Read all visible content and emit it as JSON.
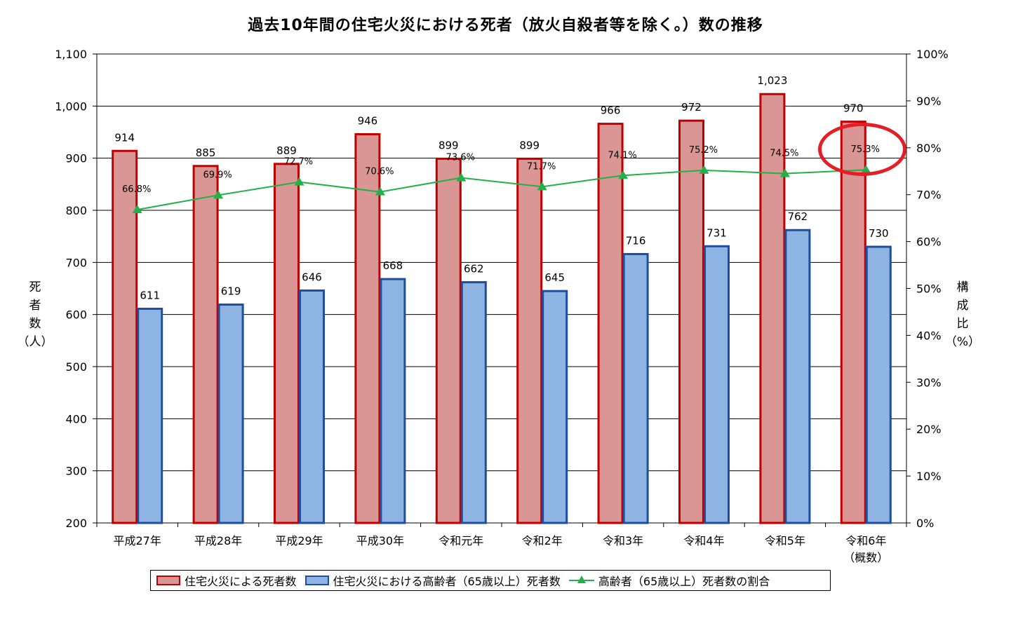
{
  "title": "過去10年間の住宅火災における死者（放火自殺者等を除く。）数の推移",
  "y_left_title": [
    "死",
    "者",
    "数",
    "（人）"
  ],
  "y_right_title": [
    "構",
    "成",
    "比",
    "（%）"
  ],
  "colors": {
    "bar_total_fill": "#d99694",
    "bar_total_border": "#c00000",
    "bar_elderly_fill": "#8eb4e3",
    "bar_elderly_border": "#1f4e9c",
    "line": "#22b04a",
    "annotation": "#e41e26"
  },
  "annotation": "red-ellipse-around-令和6年-ratio",
  "legend": {
    "total": "住宅火災による死者数",
    "elderly": "住宅火災における高齢者（65歳以上）死者数",
    "ratio": "高齢者（65歳以上）死者数の割合"
  },
  "chart_data": {
    "type": "bar",
    "title": "過去10年間の住宅火災における死者（放火自殺者等を除く。）数の推移",
    "categories": [
      "平成27年",
      "平成28年",
      "平成29年",
      "平成30年",
      "令和元年",
      "令和2年",
      "令和3年",
      "令和4年",
      "令和5年",
      "令和6年"
    ],
    "category_sublabels": [
      "",
      "",
      "",
      "",
      "",
      "",
      "",
      "",
      "",
      "（概数）"
    ],
    "series": [
      {
        "name": "住宅火災による死者数",
        "kind": "bar",
        "axis": "left",
        "values": [
          914,
          885,
          889,
          946,
          899,
          899,
          966,
          972,
          1023,
          970
        ],
        "labels": [
          "914",
          "885",
          "889",
          "946",
          "899",
          "899",
          "966",
          "972",
          "1,023",
          "970"
        ]
      },
      {
        "name": "住宅火災における高齢者（65歳以上）死者数",
        "kind": "bar",
        "axis": "left",
        "values": [
          611,
          619,
          646,
          668,
          662,
          645,
          716,
          731,
          762,
          730
        ],
        "labels": [
          "611",
          "619",
          "646",
          "668",
          "662",
          "645",
          "716",
          "731",
          "762",
          "730"
        ]
      },
      {
        "name": "高齢者（65歳以上）死者数の割合",
        "kind": "line",
        "axis": "right",
        "marker": "triangle",
        "values": [
          66.8,
          69.9,
          72.7,
          70.6,
          73.6,
          71.7,
          74.1,
          75.2,
          74.5,
          75.3
        ],
        "labels": [
          "66.8%",
          "69.9%",
          "72.7%",
          "70.6%",
          "73.6%",
          "71.7%",
          "74.1%",
          "75.2%",
          "74.5%",
          "75.3%"
        ]
      }
    ],
    "ylabel": "死者数（人）",
    "y2label": "構成比（%）",
    "ylim": [
      200,
      1100
    ],
    "y_ticks": [
      "200",
      "300",
      "400",
      "500",
      "600",
      "700",
      "800",
      "900",
      "1,000",
      "1,100"
    ],
    "y2lim": [
      0,
      100
    ],
    "y2_ticks": [
      "0%",
      "10%",
      "20%",
      "30%",
      "40%",
      "50%",
      "60%",
      "70%",
      "80%",
      "90%",
      "100%"
    ],
    "grid": "horizontal",
    "legend_position": "bottom"
  }
}
